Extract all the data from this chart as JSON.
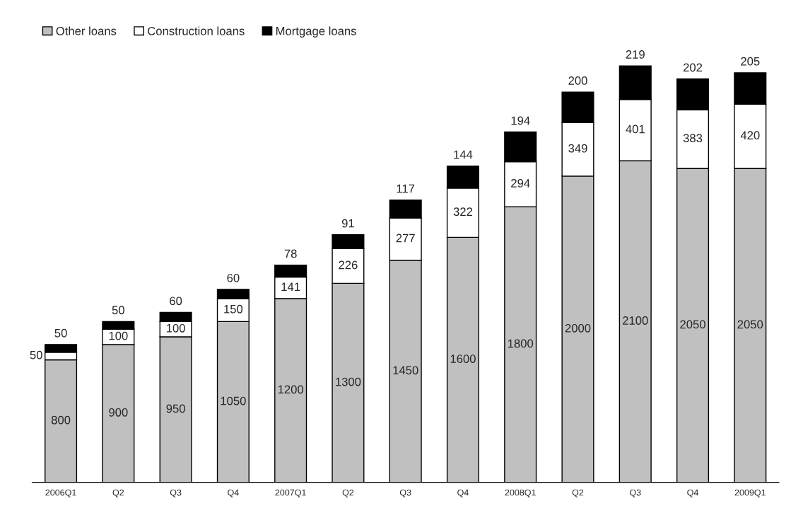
{
  "chart_data": {
    "type": "bar",
    "stacked": true,
    "categories": [
      "2006Q1",
      "Q2",
      "Q3",
      "Q4",
      "2007Q1",
      "Q2",
      "Q3",
      "Q4",
      "2008Q1",
      "Q2",
      "Q3",
      "Q4",
      "2009Q1"
    ],
    "series": [
      {
        "name": "Other loans",
        "color": "#c0c0c0",
        "values": [
          800,
          900,
          950,
          1050,
          1200,
          1300,
          1450,
          1600,
          1800,
          2000,
          2100,
          2050,
          2050
        ]
      },
      {
        "name": "Construction loans",
        "color": "#ffffff",
        "values": [
          50,
          100,
          100,
          150,
          141,
          226,
          277,
          322,
          294,
          349,
          401,
          383,
          420
        ]
      },
      {
        "name": "Mortgage loans",
        "color": "#000000",
        "values": [
          50,
          50,
          60,
          60,
          78,
          91,
          117,
          144,
          194,
          200,
          219,
          202,
          205
        ]
      }
    ],
    "data_labels": true,
    "legend": "top left",
    "grid": false,
    "tick_labels": "x"
  }
}
